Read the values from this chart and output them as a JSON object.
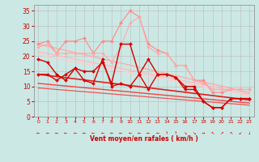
{
  "bg_color": "#cce8e4",
  "grid_color": "#bbbbbb",
  "x": [
    0,
    1,
    2,
    3,
    4,
    5,
    6,
    7,
    8,
    9,
    10,
    11,
    12,
    13,
    14,
    15,
    16,
    17,
    18,
    19,
    20,
    21,
    22,
    23
  ],
  "straight_lines": [
    {
      "y0": 24.0,
      "y1": 8.0,
      "color": "#ffaaaa",
      "lw": 1.0,
      "zorder": 2
    },
    {
      "y0": 21.5,
      "y1": 7.5,
      "color": "#ffbbbb",
      "lw": 1.0,
      "zorder": 2
    },
    {
      "y0": 20.5,
      "y1": 7.0,
      "color": "#ffcccc",
      "lw": 1.0,
      "zorder": 2
    },
    {
      "y0": 14.0,
      "y1": 5.5,
      "color": "#dd2222",
      "lw": 1.2,
      "zorder": 2
    },
    {
      "y0": 11.0,
      "y1": 4.5,
      "color": "#ee4444",
      "lw": 1.0,
      "zorder": 2
    },
    {
      "y0": 9.5,
      "y1": 3.8,
      "color": "#ee5555",
      "lw": 0.9,
      "zorder": 2
    }
  ],
  "jagged_lines": [
    {
      "y": [
        24,
        25,
        21,
        25,
        25,
        26,
        21,
        25,
        25,
        31,
        35,
        33,
        24,
        22,
        21,
        17,
        17,
        12,
        12,
        8,
        8,
        9,
        9,
        9
      ],
      "color": "#ff8888",
      "lw": 0.8,
      "marker": "D",
      "ms": 2.0,
      "zorder": 4
    },
    {
      "y": [
        23,
        24,
        21,
        21,
        21,
        21,
        21,
        21,
        18,
        23,
        31,
        33,
        23,
        21,
        21,
        17,
        17,
        12,
        11,
        9,
        9,
        9,
        9,
        9
      ],
      "color": "#ffaaaa",
      "lw": 0.8,
      "marker": "D",
      "ms": 1.8,
      "zorder": 4
    },
    {
      "y": [
        19,
        18,
        14,
        12,
        16,
        15,
        15,
        18,
        11,
        24,
        24,
        14,
        19,
        14,
        14,
        13,
        10,
        10,
        5,
        3,
        3,
        6,
        6,
        6
      ],
      "color": "#cc0000",
      "lw": 1.0,
      "marker": "D",
      "ms": 2.0,
      "zorder": 5
    },
    {
      "y": [
        14,
        14,
        12,
        14,
        16,
        12,
        11,
        19,
        10,
        11,
        10,
        14,
        9,
        14,
        14,
        13,
        9,
        9,
        5,
        3,
        3,
        6,
        6,
        6
      ],
      "color": "#dd0000",
      "lw": 1.0,
      "marker": "D",
      "ms": 2.0,
      "zorder": 5
    }
  ],
  "wind_dirs": [
    "←",
    "←",
    "←",
    "←",
    "←",
    "←",
    "←",
    "←",
    "←",
    "←",
    "←",
    "←",
    "←",
    "←",
    "↑",
    "↑",
    "↘",
    "↘",
    "→",
    "↖",
    "↗",
    "↖",
    "↙",
    "↓"
  ],
  "xlabel": "Vent moyen/en rafales ( km/h )",
  "xlim": [
    -0.5,
    23.5
  ],
  "ylim": [
    0,
    37
  ],
  "yticks": [
    0,
    5,
    10,
    15,
    20,
    25,
    30,
    35
  ],
  "xticks": [
    0,
    1,
    2,
    3,
    4,
    5,
    6,
    7,
    8,
    9,
    10,
    11,
    12,
    13,
    14,
    15,
    16,
    17,
    18,
    19,
    20,
    21,
    22,
    23
  ]
}
